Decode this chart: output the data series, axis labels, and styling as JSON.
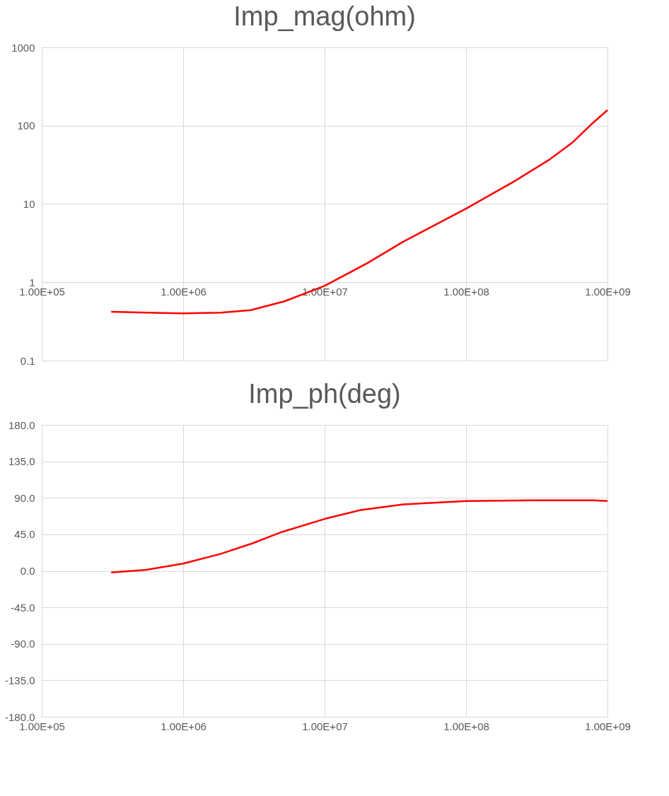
{
  "chart_data": [
    {
      "type": "line",
      "title": "Imp_mag(ohm)",
      "log": "xy",
      "grid": true,
      "marker": "none",
      "line_style": "solid",
      "xlim": [
        100000,
        1000000000
      ],
      "xticks": [
        {
          "value": 100000,
          "label": "1.00E+05"
        },
        {
          "value": 1000000,
          "label": "1.00E+06"
        },
        {
          "value": 10000000,
          "label": "1.00E+07"
        },
        {
          "value": 100000000,
          "label": "1.00E+08"
        },
        {
          "value": 1000000000,
          "label": "1.00E+09"
        }
      ],
      "ylim": [
        0.1,
        1000
      ],
      "yticks": [
        0.1,
        1,
        10,
        100,
        1000
      ],
      "series": [
        {
          "color": "#ff0000",
          "x": [
            310000,
            560000,
            1000000,
            1850000,
            3000000,
            5200000,
            10000000,
            20000000,
            36000000,
            100000000,
            220000000,
            390000000,
            560000000,
            760000000,
            1000000000
          ],
          "values": [
            0.42,
            0.41,
            0.4,
            0.41,
            0.44,
            0.57,
            0.9,
            1.75,
            3.3,
            8.7,
            19.5,
            37,
            60,
            102,
            158
          ]
        }
      ]
    },
    {
      "type": "line",
      "title": "Imp_ph(deg)",
      "log": "x",
      "grid": true,
      "marker": "none",
      "line_style": "solid",
      "xlim": [
        100000,
        1000000000
      ],
      "xticks": [
        {
          "value": 100000,
          "label": "1.00E+05"
        },
        {
          "value": 1000000,
          "label": "1.00E+06"
        },
        {
          "value": 10000000,
          "label": "1.00E+07"
        },
        {
          "value": 100000000,
          "label": "1.00E+08"
        },
        {
          "value": 1000000000,
          "label": "1.00E+09"
        }
      ],
      "ylim": [
        -180,
        180
      ],
      "yticks": [
        {
          "value": -180,
          "label": "-180.0"
        },
        {
          "value": -135,
          "label": "-135.0"
        },
        {
          "value": -90,
          "label": "-90.0"
        },
        {
          "value": -45,
          "label": "-45.0"
        },
        {
          "value": 0,
          "label": "0.0"
        },
        {
          "value": 45,
          "label": "45.0"
        },
        {
          "value": 90,
          "label": "90.0"
        },
        {
          "value": 135,
          "label": "135.0"
        },
        {
          "value": 180,
          "label": "180.0"
        }
      ],
      "series": [
        {
          "color": "#ff0000",
          "x": [
            310000,
            540000,
            1000000,
            1850000,
            3100000,
            5000000,
            10000000,
            18000000,
            36000000,
            100000000,
            300000000,
            800000000,
            1000000000
          ],
          "values": [
            -2,
            1,
            9,
            21,
            34,
            48,
            64,
            75,
            82,
            86,
            87,
            87,
            86
          ]
        }
      ]
    }
  ]
}
